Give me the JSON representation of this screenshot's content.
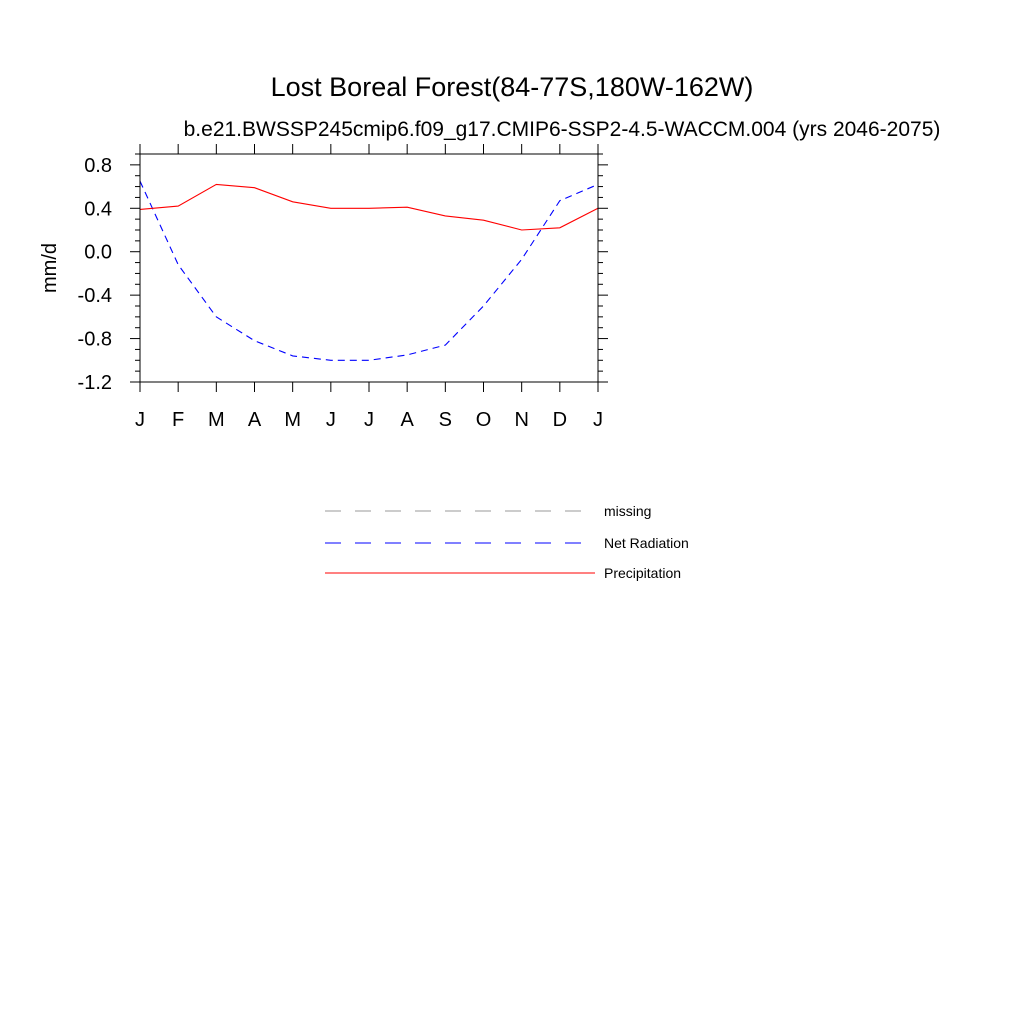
{
  "chart_data": {
    "type": "line",
    "title": "Lost Boreal Forest(84-77S,180W-162W)",
    "subtitle": "b.e21.BWSSP245cmip6.f09_g17.CMIP6-SSP2-4.5-WACCM.004 (yrs 2046-2075)",
    "xlabel": "",
    "ylabel": "mm/d",
    "categories": [
      "J",
      "F",
      "M",
      "A",
      "M",
      "J",
      "J",
      "A",
      "S",
      "O",
      "N",
      "D",
      "J"
    ],
    "ylim": [
      -1.2,
      0.9
    ],
    "yticks": [
      "0.8",
      "0.4",
      "0.0",
      "-0.4",
      "-0.8",
      "-1.2"
    ],
    "series": [
      {
        "name": "Net Radiation",
        "color": "#0000ff",
        "dash": "dashed",
        "values": [
          0.65,
          -0.12,
          -0.6,
          -0.82,
          -0.96,
          -1.0,
          -1.0,
          -0.95,
          -0.86,
          -0.5,
          -0.07,
          0.47,
          0.62
        ]
      },
      {
        "name": "Precipitation",
        "color": "#ff0000",
        "dash": "solid",
        "values": [
          0.39,
          0.42,
          0.62,
          0.59,
          0.46,
          0.4,
          0.4,
          0.41,
          0.33,
          0.29,
          0.2,
          0.22,
          0.4
        ]
      }
    ],
    "legend": {
      "placement": "below",
      "entries": [
        {
          "label": "missing",
          "color": "#999999",
          "dash": "dashed"
        },
        {
          "label": "Net Radiation",
          "color": "#0000ff",
          "dash": "dashed"
        },
        {
          "label": "Precipitation",
          "color": "#ff0000",
          "dash": "solid"
        }
      ]
    },
    "grid": false
  }
}
